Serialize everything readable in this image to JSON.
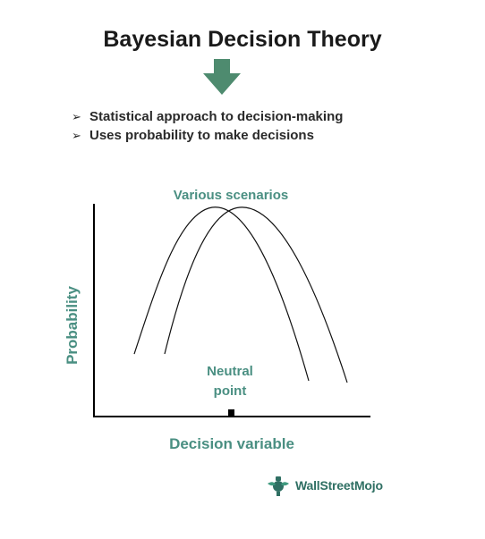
{
  "title": "Bayesian Decision Theory",
  "bullets": [
    "Statistical approach to decision-making",
    "Uses probability to make decisions"
  ],
  "diagram": {
    "curve_label": "Various scenarios",
    "y_axis_label": "Probability",
    "x_axis_label": "Decision variable",
    "marker_label_line1": "Neutral",
    "marker_label_line2": "point"
  },
  "logo": {
    "text": "WallStreetMojo"
  },
  "colors": {
    "accent_teal": "#4a8f82",
    "arrow_green": "#4e8b6f",
    "text_dark": "#1a1a1a"
  }
}
